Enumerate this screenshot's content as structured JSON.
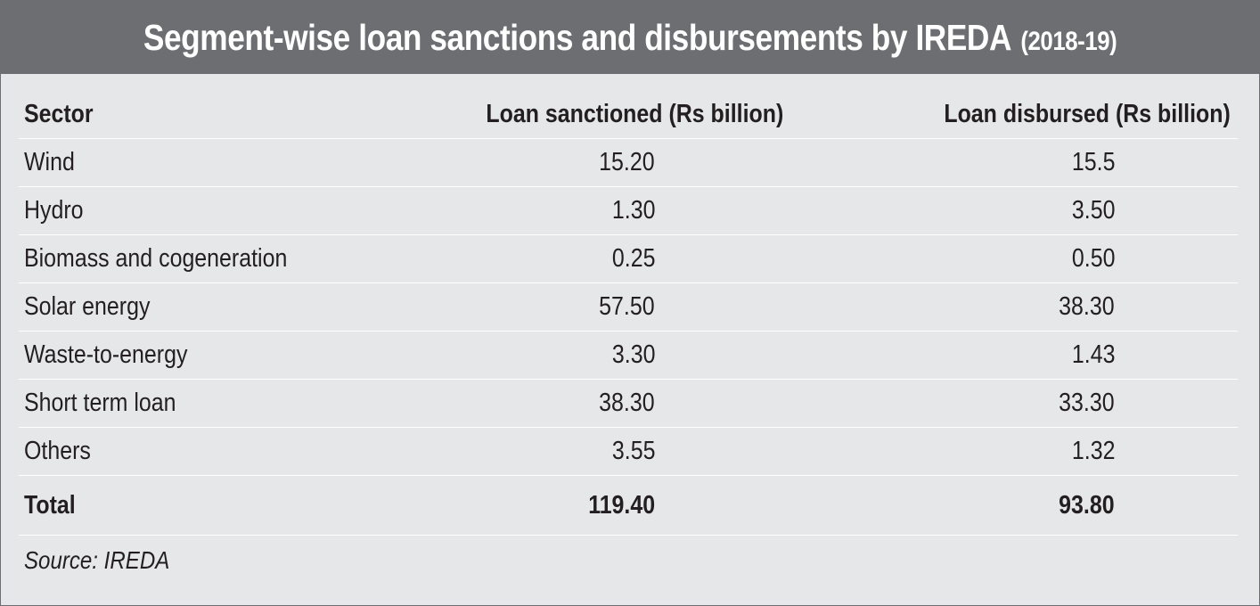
{
  "title": "Segment-wise loan sanctions and disbursements by IREDA",
  "title_suffix": "(2018-19)",
  "columns": [
    "Sector",
    "Loan sanctioned (Rs billion)",
    "Loan disbursed (Rs billion)"
  ],
  "rows": [
    {
      "sector": "Wind",
      "sanctioned": "15.20",
      "disbursed": "15.5"
    },
    {
      "sector": "Hydro",
      "sanctioned": "1.30",
      "disbursed": "3.50"
    },
    {
      "sector": "Biomass and cogeneration",
      "sanctioned": "0.25",
      "disbursed": "0.50"
    },
    {
      "sector": "Solar energy",
      "sanctioned": "57.50",
      "disbursed": "38.30"
    },
    {
      "sector": "Waste-to-energy",
      "sanctioned": "3.30",
      "disbursed": "1.43"
    },
    {
      "sector": "Short term loan",
      "sanctioned": "38.30",
      "disbursed": "33.30"
    },
    {
      "sector": "Others",
      "sanctioned": "3.55",
      "disbursed": "1.32"
    }
  ],
  "total": {
    "label": "Total",
    "sanctioned": "119.40",
    "disbursed": "93.80"
  },
  "source": "Source: IREDA",
  "colors": {
    "title_bg": "#6d6e71",
    "panel_bg": "#e6e7e8",
    "text": "#231f20",
    "rule": "#ffffff"
  },
  "chart_data": {
    "type": "table",
    "title": "Segment-wise loan sanctions and disbursements by IREDA (2018-19)",
    "columns": [
      "Sector",
      "Loan sanctioned (Rs billion)",
      "Loan disbursed (Rs billion)"
    ],
    "categories": [
      "Wind",
      "Hydro",
      "Biomass and cogeneration",
      "Solar energy",
      "Waste-to-energy",
      "Short term loan",
      "Others",
      "Total"
    ],
    "series": [
      {
        "name": "Loan sanctioned (Rs billion)",
        "values": [
          15.2,
          1.3,
          0.25,
          57.5,
          3.3,
          38.3,
          3.55,
          119.4
        ]
      },
      {
        "name": "Loan disbursed (Rs billion)",
        "values": [
          15.5,
          3.5,
          0.5,
          38.3,
          1.43,
          33.3,
          1.32,
          93.8
        ]
      }
    ],
    "source": "Source: IREDA"
  }
}
